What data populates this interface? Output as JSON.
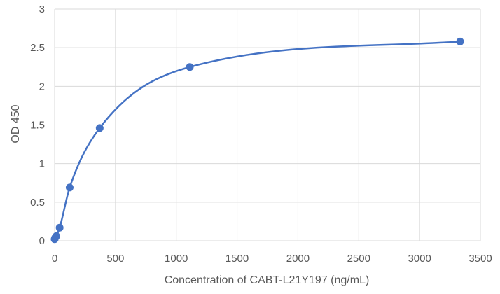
{
  "chart_data": {
    "type": "scatter",
    "title": "",
    "xlabel": "Concentration of CABT-L21Y197 (ng/mL)",
    "ylabel": "OD 450",
    "xlim": [
      0,
      3500
    ],
    "ylim": [
      0,
      3
    ],
    "xticks": [
      0,
      500,
      1000,
      1500,
      2000,
      2500,
      3000,
      3500
    ],
    "yticks": [
      0,
      0.5,
      1,
      1.5,
      2,
      2.5,
      3
    ],
    "ytick_labels": [
      "0",
      "0.5",
      "1",
      "1.5",
      "2",
      "2.5",
      "3"
    ],
    "grid": true,
    "legend": "none",
    "series": [
      {
        "color": "#4472c4",
        "x": [
          0,
          4.6,
          13.7,
          41.2,
          123.5,
          370.4,
          1111.1,
          3333.3
        ],
        "y": [
          0.02,
          0.04,
          0.06,
          0.17,
          0.69,
          1.46,
          2.25,
          2.58
        ],
        "line": "smooth"
      }
    ]
  }
}
